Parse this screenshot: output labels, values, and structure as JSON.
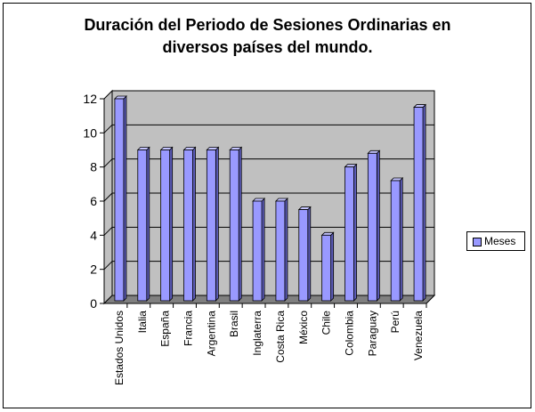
{
  "chart_data": {
    "type": "bar",
    "title_lines": [
      "Duración del Periodo de Sesiones Ordinarias en",
      "diversos países del mundo."
    ],
    "categories": [
      "Estados Unidos",
      "Italia",
      "España",
      "Francia",
      "Argentina",
      "Brasil",
      "Inglaterra",
      "Costa Rica",
      "México",
      "Chile",
      "Colombia",
      "Paraguay",
      "Perú",
      "Venezuela"
    ],
    "series": [
      {
        "name": "Meses",
        "values": [
          12,
          9,
          9,
          9,
          9,
          9,
          6,
          6,
          5.5,
          4,
          8,
          8.8,
          7.2,
          11.5
        ]
      }
    ],
    "ylim": [
      0,
      12
    ],
    "yticks": [
      "0",
      "2",
      "4",
      "6",
      "8",
      "10",
      "12"
    ],
    "grid": true,
    "legend_position": "right",
    "colors": {
      "bar": "#9999ff",
      "bar_side": "#5c5cb8",
      "bar_top": "#c4c4ff",
      "wall": "#c0c0c0",
      "floor": "#808080"
    }
  }
}
